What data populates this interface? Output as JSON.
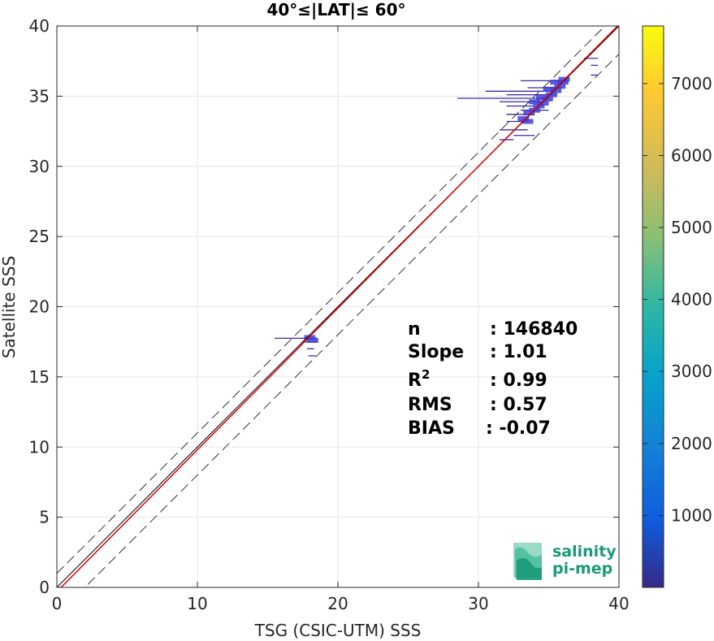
{
  "chart_data": {
    "type": "scatter",
    "title": "40°≤|LAT|≤ 60°",
    "xlabel": "TSG (CSIC-UTM) SSS",
    "ylabel": "Satellite SSS",
    "xlim": [
      0,
      40
    ],
    "ylim": [
      0,
      40
    ],
    "xticks": [
      0,
      10,
      20,
      30,
      40
    ],
    "yticks": [
      0,
      5,
      10,
      15,
      20,
      25,
      30,
      35,
      40
    ],
    "grid": true,
    "colorbar": {
      "ticks": [
        1000,
        2000,
        3000,
        4000,
        5000,
        6000,
        7000
      ],
      "range": [
        0,
        7800
      ],
      "colormap": "parula"
    },
    "reference_lines": {
      "one_to_one_color": "#000000",
      "fit_color": "#e00000",
      "fit_slope": 1.01,
      "fit_intercept": -0.3,
      "envelope_offset": 1.0,
      "envelope_style": "dashed"
    },
    "stats": [
      {
        "label": "n",
        "value": ": 146840"
      },
      {
        "label": "Slope",
        "value": ": 1.01"
      },
      {
        "label": "R",
        "sup": "2",
        "value": ": 0.99"
      },
      {
        "label": "RMS",
        "value": ": 0.57"
      },
      {
        "label": "BIAS",
        "value": ": -0.07"
      }
    ],
    "density_segments": [
      {
        "x0": 28.5,
        "x1": 35.0,
        "y": 34.85
      },
      {
        "x0": 30.5,
        "x1": 35.5,
        "y": 35.35
      },
      {
        "x0": 32.0,
        "x1": 35.5,
        "y": 35.1
      },
      {
        "x0": 31.5,
        "x1": 34.5,
        "y": 34.6
      },
      {
        "x0": 32.0,
        "x1": 34.0,
        "y": 34.3
      },
      {
        "x0": 33.0,
        "x1": 36.0,
        "y": 36.1
      },
      {
        "x0": 32.0,
        "x1": 34.0,
        "y": 33.7
      },
      {
        "x0": 32.0,
        "x1": 33.5,
        "y": 33.2
      },
      {
        "x0": 31.5,
        "x1": 33.5,
        "y": 32.6
      },
      {
        "x0": 32.5,
        "x1": 34.0,
        "y": 32.2
      },
      {
        "x0": 31.5,
        "x1": 32.5,
        "y": 31.9
      },
      {
        "x0": 33.5,
        "x1": 36.0,
        "y": 35.6
      },
      {
        "x0": 33.0,
        "x1": 35.0,
        "y": 34.0
      },
      {
        "x0": 37.5,
        "x1": 38.5,
        "y": 37.7
      },
      {
        "x0": 38.0,
        "x1": 38.5,
        "y": 37.2
      },
      {
        "x0": 38.0,
        "x1": 38.5,
        "y": 36.5
      },
      {
        "x0": 15.5,
        "x1": 18.5,
        "y": 17.75
      },
      {
        "x0": 17.5,
        "x1": 18.5,
        "y": 17.5
      },
      {
        "x0": 17.8,
        "x1": 18.3,
        "y": 17.0
      },
      {
        "x0": 17.9,
        "x1": 18.4,
        "y": 16.5
      }
    ],
    "density_core": [
      {
        "x": 33.2,
        "y": 33.4
      },
      {
        "x": 33.6,
        "y": 33.8
      },
      {
        "x": 34.0,
        "y": 34.0
      },
      {
        "x": 34.3,
        "y": 34.3
      },
      {
        "x": 34.6,
        "y": 34.5
      },
      {
        "x": 34.9,
        "y": 34.8
      },
      {
        "x": 35.2,
        "y": 35.1
      },
      {
        "x": 35.5,
        "y": 35.4
      },
      {
        "x": 35.8,
        "y": 35.7
      },
      {
        "x": 36.0,
        "y": 36.0
      },
      {
        "x": 35.0,
        "y": 35.5
      },
      {
        "x": 35.5,
        "y": 36.0
      },
      {
        "x": 34.5,
        "y": 34.9
      },
      {
        "x": 34.0,
        "y": 34.6
      },
      {
        "x": 33.5,
        "y": 33.2
      },
      {
        "x": 36.1,
        "y": 36.2
      },
      {
        "x": 18.0,
        "y": 17.8
      },
      {
        "x": 18.2,
        "y": 17.6
      }
    ]
  },
  "logo": {
    "line1": "salinity",
    "line2": "pi-mep"
  }
}
